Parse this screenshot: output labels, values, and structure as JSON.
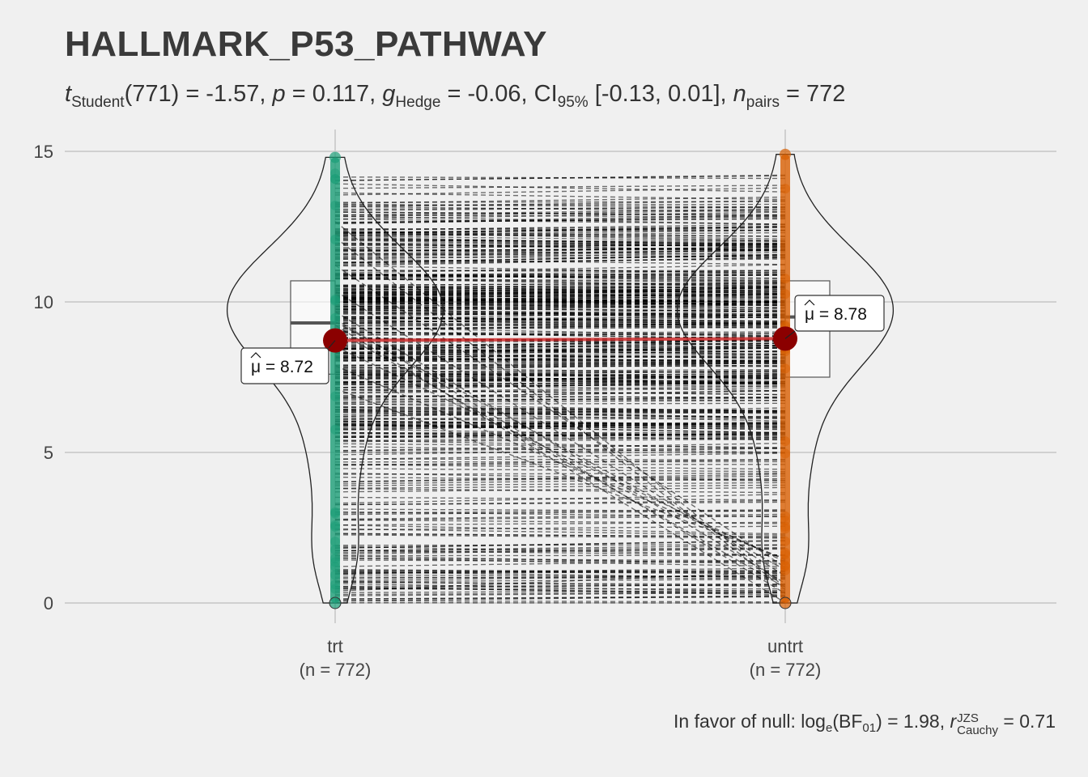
{
  "title": "HALLMARK_P53_PATHWAY",
  "subtitle": {
    "t_label": "t",
    "t_sub": "Student",
    "t_text": "(771) = -1.57, ",
    "p_label": "p",
    "p_text": " = 0.117, ",
    "g_label": "g",
    "g_sub": "Hedge",
    "g_text": " = -0.06, CI",
    "ci_sub": "95%",
    "ci_text": " [-0.13, 0.01], ",
    "n_label": "n",
    "n_sub": "pairs",
    "n_text": " = 772"
  },
  "caption": {
    "text1": "In favor of null: log",
    "log_sub": "e",
    "text2": "(BF",
    "bf_sub": "01",
    "text3": ") = 1.98, ",
    "r_label": "r",
    "r_sup": "JZS",
    "r_sub": "Cauchy",
    "text4": " = 0.71"
  },
  "chart_data": {
    "type": "violin",
    "categories": [
      "trt",
      "untrt"
    ],
    "category_labels": [
      "trt",
      "untrt"
    ],
    "n_labels": [
      "(n = 772)",
      "(n = 772)"
    ],
    "n_per_group": 772,
    "paired": true,
    "ylim": [
      0,
      15
    ],
    "yticks": [
      0,
      5,
      10,
      15
    ],
    "means": [
      8.72,
      8.78
    ],
    "mean_labels": [
      "8.72",
      "8.78"
    ],
    "boxplot": [
      {
        "q1": 7.6,
        "median": 9.3,
        "q3": 10.7
      },
      {
        "q1": 7.5,
        "median": 9.5,
        "q3": 10.7
      }
    ],
    "range": [
      [
        0,
        14.8
      ],
      [
        0,
        14.9
      ]
    ],
    "colors": {
      "trt": "#1b9e77",
      "untrt": "#d95f02",
      "mean": "#8b0000",
      "mean_line": "#cd2626"
    },
    "grid": true,
    "legend": "none"
  }
}
